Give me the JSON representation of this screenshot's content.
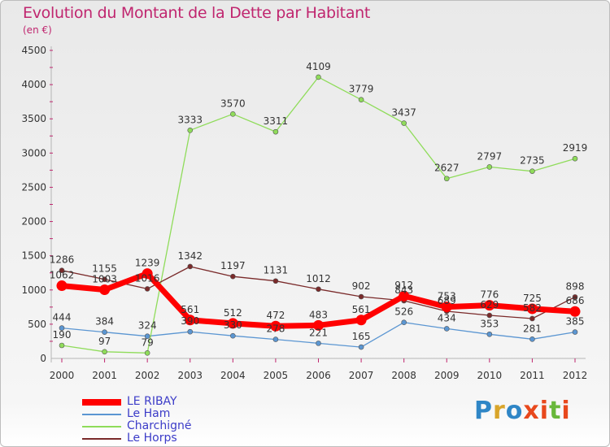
{
  "title": "Evolution du Montant de la Dette par Habitant",
  "unit": "(en €)",
  "logo": {
    "text": "Proxiti",
    "colors": [
      "#2f86c6",
      "#d9a52a",
      "#2f86c6",
      "#e8481c",
      "#e8481c",
      "#69b83b",
      "#e8481c"
    ]
  },
  "chart_data": {
    "type": "line",
    "title": "Evolution du Montant de la Dette par Habitant",
    "ylabel": "(en €)",
    "xlabel": "",
    "ylim": [
      0,
      4500
    ],
    "yticks": [
      0,
      500,
      1000,
      1500,
      2000,
      2500,
      3000,
      3500,
      4000,
      4500
    ],
    "x": [
      "2000",
      "2001",
      "2002",
      "2003",
      "2004",
      "2005",
      "2006",
      "2007",
      "2008",
      "2009",
      "2010",
      "2011",
      "2012"
    ],
    "grid": false,
    "legend": "bottom-left",
    "series": [
      {
        "name": "LE RIBAY",
        "color": "#ff0000",
        "bold": true,
        "values": [
          1062,
          1003,
          1239,
          561,
          512,
          472,
          483,
          561,
          912,
          753,
          776,
          725,
          686
        ]
      },
      {
        "name": "Le Ham",
        "color": "#5b96d2",
        "values": [
          444,
          384,
          324,
          390,
          330,
          278,
          221,
          165,
          526,
          434,
          353,
          281,
          385
        ]
      },
      {
        "name": "Charchigné",
        "color": "#8fdc5a",
        "values": [
          190,
          97,
          79,
          3333,
          3570,
          3311,
          4109,
          3779,
          3437,
          2627,
          2797,
          2735,
          2919
        ]
      },
      {
        "name": "Le Horps",
        "color": "#7a2a2a",
        "values": [
          1286,
          1155,
          1016,
          1342,
          1197,
          1131,
          1012,
          902,
          843,
          689,
          629,
          582,
          898
        ]
      }
    ],
    "data_labels": [
      {
        "series": 2,
        "index": 0,
        "text": "190"
      },
      {
        "series": 2,
        "index": 1,
        "text": "97"
      },
      {
        "series": 2,
        "index": 2,
        "text": "79"
      },
      {
        "series": 2,
        "index": 3,
        "text": "3333"
      },
      {
        "series": 2,
        "index": 4,
        "text": "3570"
      },
      {
        "series": 2,
        "index": 5,
        "text": "3311"
      },
      {
        "series": 2,
        "index": 6,
        "text": "4109"
      },
      {
        "series": 2,
        "index": 7,
        "text": "3779"
      },
      {
        "series": 2,
        "index": 8,
        "text": "3437"
      },
      {
        "series": 2,
        "index": 9,
        "text": "2627"
      },
      {
        "series": 2,
        "index": 10,
        "text": "2797"
      },
      {
        "series": 2,
        "index": 11,
        "text": "2735"
      },
      {
        "series": 2,
        "index": 12,
        "text": "2919"
      },
      {
        "series": 3,
        "index": 0,
        "text": "1286"
      },
      {
        "series": 3,
        "index": 1,
        "text": "1155"
      },
      {
        "series": 3,
        "index": 2,
        "text": "1016"
      },
      {
        "series": 3,
        "index": 3,
        "text": "1342"
      },
      {
        "series": 3,
        "index": 4,
        "text": "1197"
      },
      {
        "series": 3,
        "index": 5,
        "text": "1131"
      },
      {
        "series": 3,
        "index": 6,
        "text": "1012"
      },
      {
        "series": 3,
        "index": 7,
        "text": "902"
      },
      {
        "series": 3,
        "index": 8,
        "text": "843"
      },
      {
        "series": 3,
        "index": 9,
        "text": "689"
      },
      {
        "series": 3,
        "index": 10,
        "text": "629"
      },
      {
        "series": 3,
        "index": 11,
        "text": "582"
      },
      {
        "series": 3,
        "index": 12,
        "text": "898"
      },
      {
        "series": 0,
        "index": 0,
        "text": "1062"
      },
      {
        "series": 0,
        "index": 1,
        "text": "1003"
      },
      {
        "series": 0,
        "index": 2,
        "text": "1239"
      },
      {
        "series": 0,
        "index": 3,
        "text": "561"
      },
      {
        "series": 0,
        "index": 4,
        "text": "512"
      },
      {
        "series": 0,
        "index": 5,
        "text": "472"
      },
      {
        "series": 0,
        "index": 6,
        "text": "483"
      },
      {
        "series": 0,
        "index": 7,
        "text": "561"
      },
      {
        "series": 0,
        "index": 8,
        "text": "912"
      },
      {
        "series": 0,
        "index": 9,
        "text": "753"
      },
      {
        "series": 0,
        "index": 10,
        "text": "776"
      },
      {
        "series": 0,
        "index": 11,
        "text": "725"
      },
      {
        "series": 0,
        "index": 12,
        "text": "686"
      },
      {
        "series": 1,
        "index": 0,
        "text": "444"
      },
      {
        "series": 1,
        "index": 1,
        "text": "384"
      },
      {
        "series": 1,
        "index": 2,
        "text": "324"
      },
      {
        "series": 1,
        "index": 3,
        "text": "390"
      },
      {
        "series": 1,
        "index": 4,
        "text": "330"
      },
      {
        "series": 1,
        "index": 5,
        "text": "278"
      },
      {
        "series": 1,
        "index": 6,
        "text": "221"
      },
      {
        "series": 1,
        "index": 7,
        "text": "165"
      },
      {
        "series": 1,
        "index": 8,
        "text": "526"
      },
      {
        "series": 1,
        "index": 9,
        "text": "434"
      },
      {
        "series": 1,
        "index": 10,
        "text": "353"
      },
      {
        "series": 1,
        "index": 11,
        "text": "281"
      },
      {
        "series": 1,
        "index": 12,
        "text": "385"
      }
    ]
  }
}
